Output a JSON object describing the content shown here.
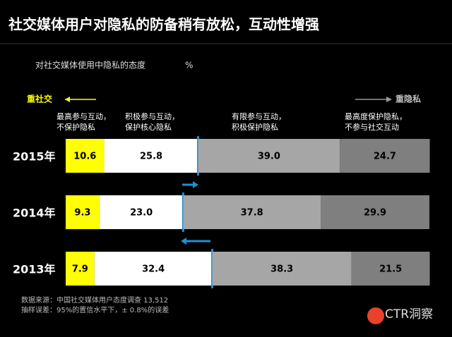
{
  "chart_data": {
    "type": "stacked-bar-horizontal",
    "title": "社交媒体用户对隐私的防备稍有放松，互动性增强",
    "subtitle": "对社交媒体使用中隐私的态度",
    "unit": "%",
    "left_annotation": "重社交",
    "right_annotation": "重隐私",
    "categories": [
      "2015年",
      "2014年",
      "2013年"
    ],
    "xlim": [
      0,
      100
    ],
    "series": [
      {
        "name": "最高参与互动，\n不保护隐私",
        "color": "#ffff00",
        "values": [
          10.6,
          9.3,
          7.9
        ]
      },
      {
        "name": "积极参与互动，\n保护核心隐私",
        "color": "#ffffff",
        "values": [
          25.8,
          23.0,
          32.4
        ],
        "value_labels": [
          "25.8",
          "23.0",
          "32.4"
        ]
      },
      {
        "name": "有限参与互动，\n积极保护隐私",
        "color": "#a6a6a6",
        "values": [
          39.0,
          37.8,
          38.3
        ],
        "value_labels": [
          "39.0",
          "37.8",
          "38.3"
        ]
      },
      {
        "name": "最高度保护隐私，\n不参与社交互动",
        "color": "#7f7f7f",
        "values": [
          24.7,
          29.9,
          21.5
        ]
      }
    ],
    "notes": [
      "数据来源：中国社交媒体用户态度调查  13,512",
      "抽样误差：95%的置信水平下，± 0.8%的误差"
    ],
    "logo": "CTR洞察"
  }
}
